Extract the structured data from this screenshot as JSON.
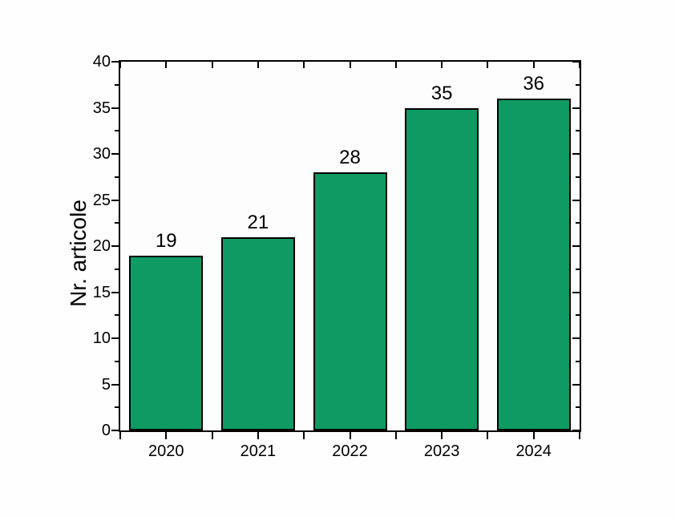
{
  "chart_data": {
    "type": "bar",
    "title": "",
    "xlabel": "",
    "ylabel": "Nr. articole",
    "categories": [
      "2020",
      "2021",
      "2022",
      "2023",
      "2024"
    ],
    "values": [
      19,
      21,
      28,
      35,
      36
    ],
    "bar_value_labels": [
      "19",
      "21",
      "28",
      "35",
      "36"
    ],
    "ylim": [
      0,
      40
    ],
    "y_major_ticks": [
      0,
      5,
      10,
      15,
      20,
      25,
      30,
      35,
      40
    ],
    "y_minor_step": 2.5,
    "y_major_step": 5,
    "grid": false,
    "legend": "none",
    "tick_style": "ticks on all four sides; left and bottom outward, right and top inward",
    "colors": {
      "bar_fill": "#0f9a64",
      "bar_border": "#000000",
      "axis": "#000000",
      "text": "#000000",
      "background": "#ffffff"
    }
  }
}
